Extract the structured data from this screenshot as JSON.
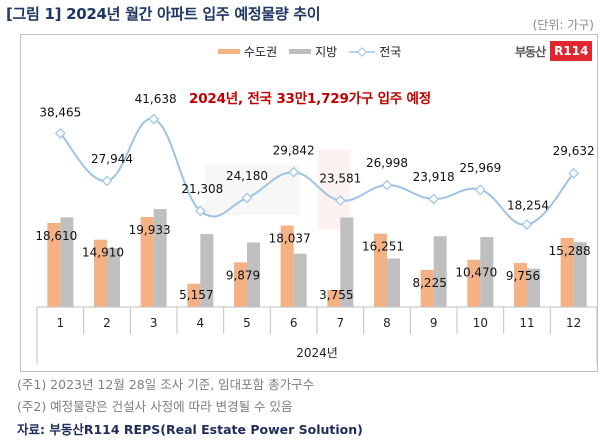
{
  "title": "[그림 1] 2024년 월간 아파트 입주 예정물량 추이",
  "unit": "(단위: 가구)",
  "logo": {
    "korean": "부동산",
    "badge": "R114"
  },
  "headline": "2024년, 전국 33만1,729가구 입주 예정",
  "colors": {
    "capital": "#f4b183",
    "local": "#bfbfbf",
    "national": "#9dc3e6",
    "headline": "#c00000",
    "title": "#1f3763"
  },
  "chart_data": {
    "type": "bar",
    "title": "2024년 월간 아파트 입주 예정물량 추이",
    "xlabel": "2024년",
    "ylabel": "",
    "ylim": [
      0,
      68000
    ],
    "grid": false,
    "legend_position": "top-center",
    "categories": [
      "1",
      "2",
      "3",
      "4",
      "5",
      "6",
      "7",
      "8",
      "9",
      "10",
      "11",
      "12"
    ],
    "series": [
      {
        "name": "수도권",
        "type": "bar",
        "values": [
          18610,
          14910,
          19933,
          5157,
          9879,
          18037,
          3755,
          16251,
          8225,
          10470,
          9756,
          15288
        ],
        "labels": [
          "18,610",
          "14,910",
          "19,933",
          "5,157",
          "9,879",
          "18,037",
          "3,755",
          "16,251",
          "8,225",
          "10,470",
          "9,756",
          "15,288"
        ]
      },
      {
        "name": "지방",
        "type": "bar",
        "values": [
          19855,
          13034,
          21705,
          16151,
          14301,
          11805,
          19826,
          10747,
          15693,
          15499,
          8498,
          14344
        ]
      },
      {
        "name": "전국",
        "type": "line",
        "values": [
          38465,
          27944,
          41638,
          21308,
          24180,
          29842,
          23581,
          26998,
          23918,
          25969,
          18254,
          29632
        ],
        "labels": [
          "38,465",
          "27,944",
          "41,638",
          "21,308",
          "24,180",
          "29,842",
          "23,581",
          "26,998",
          "23,918",
          "25,969",
          "18,254",
          "29,632"
        ]
      }
    ]
  },
  "notes": [
    "(주1) 2023년 12월 28일 조사 기준, 임대포함 총가구수",
    "(주2) 예정물량은 건설사 사정에 따라 변경될 수 있음"
  ],
  "source": "자료: 부동산R114 REPS(Real Estate Power Solution)"
}
